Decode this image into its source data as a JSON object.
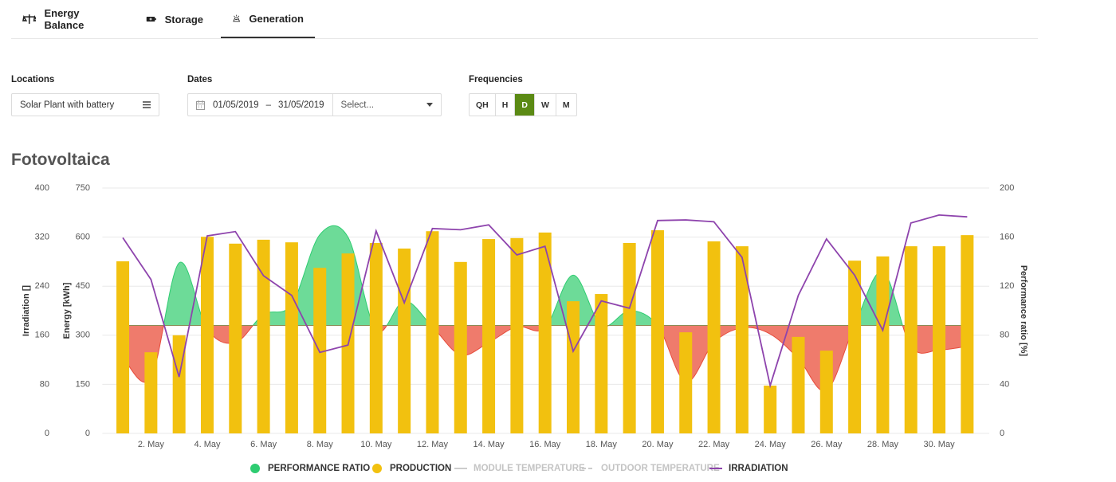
{
  "tabs": [
    {
      "label": "Energy Balance",
      "active": false
    },
    {
      "label": "Storage",
      "active": false
    },
    {
      "label": "Generation",
      "active": true
    }
  ],
  "filters": {
    "locations": {
      "label": "Locations",
      "value": "Solar Plant with battery"
    },
    "dates": {
      "label": "Dates",
      "from": "01/05/2019",
      "separator": "–",
      "to": "31/05/2019",
      "select": "Select..."
    },
    "frequencies": {
      "label": "Frequencies",
      "options": [
        "QH",
        "H",
        "D",
        "W",
        "M"
      ],
      "active": "D"
    }
  },
  "chart_data": {
    "type": "combo",
    "title": "Fotovoltaica",
    "categories": [
      null,
      "2. May",
      null,
      "4. May",
      null,
      "6. May",
      null,
      "8. May",
      null,
      "10. May",
      null,
      "12. May",
      null,
      "14. May",
      null,
      "16. May",
      null,
      "18. May",
      null,
      "20. May",
      null,
      "22. May",
      null,
      "24. May",
      null,
      "26. May",
      null,
      "28. May",
      null,
      "30. May",
      null
    ],
    "ylabel": "Energy [kWh]",
    "ylim": [
      0,
      750
    ],
    "yticks": [
      0,
      150,
      300,
      450,
      600,
      750
    ],
    "y2label": "Performance ratio [%]",
    "y2lim": [
      0,
      200
    ],
    "y2ticks": [
      0,
      40,
      80,
      120,
      160,
      200
    ],
    "y3label": "Irradiation []",
    "y3lim": [
      0,
      400
    ],
    "y3ticks": [
      0,
      80,
      160,
      240,
      320,
      400
    ],
    "grid": true,
    "legend": "bottom",
    "series": [
      {
        "name": "PERFORMANCE RATIO",
        "type": "area",
        "axis": "y2",
        "color": "#6ddb98",
        "negative_color": "#ef7b6c",
        "threshold": 88,
        "values": [
          62,
          45,
          139,
          85,
          74,
          97,
          105,
          162,
          160,
          84,
          108,
          87,
          64,
          74,
          87,
          86,
          129,
          88,
          100,
          88,
          42,
          74,
          86,
          81,
          61,
          35,
          88,
          132,
          71,
          68,
          71
        ]
      },
      {
        "name": "PRODUCTION",
        "type": "bar",
        "axis": "y",
        "color": "#f2c10f",
        "values": [
          526,
          248,
          300,
          601,
          580,
          592,
          584,
          506,
          550,
          582,
          565,
          618,
          524,
          594,
          597,
          614,
          404,
          426,
          582,
          621,
          309,
          587,
          572,
          146,
          295,
          253,
          528,
          541,
          572,
          572,
          606
        ]
      },
      {
        "name": "MODULE TEMPERATURE",
        "type": "line",
        "color": "#cccccc",
        "hidden": true
      },
      {
        "name": "OUTDOOR TEMPERATURE",
        "type": "line",
        "dashed": true,
        "color": "#cccccc",
        "hidden": true
      },
      {
        "name": "IRRADIATION",
        "type": "line",
        "axis": "y3",
        "color": "#8e44ad",
        "values": [
          319,
          251,
          92,
          322,
          329,
          257,
          225,
          132,
          144,
          330,
          213,
          334,
          332,
          340,
          291,
          305,
          134,
          216,
          204,
          347,
          348,
          345,
          287,
          78,
          225,
          317,
          258,
          168,
          343,
          356,
          353
        ]
      }
    ]
  }
}
